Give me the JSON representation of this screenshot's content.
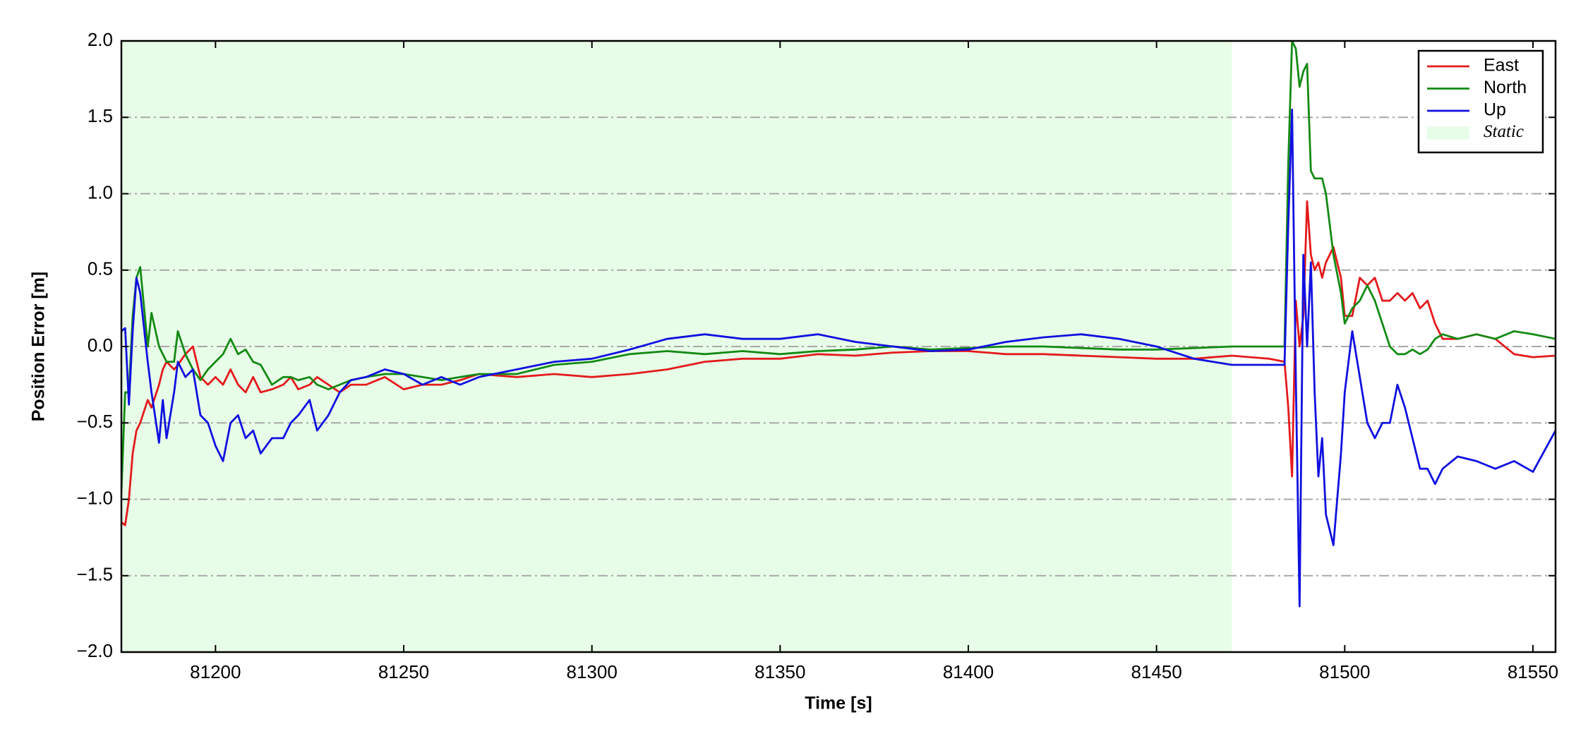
{
  "chart_data": {
    "type": "line",
    "xlabel": "Time [s]",
    "ylabel": "Position Error [m]",
    "x": [
      81175,
      81176,
      81177,
      81178,
      81179,
      81180,
      81182,
      81183,
      81185,
      81186,
      81187,
      81189,
      81190,
      81192,
      81194,
      81196,
      81198,
      81200,
      81202,
      81204,
      81206,
      81208,
      81210,
      81212,
      81215,
      81218,
      81220,
      81222,
      81225,
      81227,
      81230,
      81233,
      81236,
      81240,
      81245,
      81250,
      81255,
      81260,
      81265,
      81270,
      81280,
      81290,
      81300,
      81310,
      81320,
      81330,
      81340,
      81350,
      81360,
      81370,
      81380,
      81390,
      81400,
      81410,
      81420,
      81430,
      81440,
      81450,
      81460,
      81470,
      81480,
      81484,
      81485,
      81486,
      81487,
      81488,
      81489,
      81490,
      81491,
      81492,
      81493,
      81494,
      81495,
      81497,
      81499,
      81500,
      81502,
      81504,
      81506,
      81508,
      81510,
      81512,
      81514,
      81516,
      81518,
      81520,
      81522,
      81524,
      81526,
      81530,
      81535,
      81540,
      81545,
      81550,
      81556
    ],
    "series": [
      {
        "name": "East",
        "color": "#e31a1c",
        "values": [
          -1.15,
          -1.17,
          -1.0,
          -0.7,
          -0.55,
          -0.5,
          -0.35,
          -0.4,
          -0.25,
          -0.15,
          -0.1,
          -0.15,
          -0.12,
          -0.05,
          0.0,
          -0.2,
          -0.25,
          -0.2,
          -0.25,
          -0.15,
          -0.25,
          -0.3,
          -0.2,
          -0.3,
          -0.28,
          -0.25,
          -0.2,
          -0.28,
          -0.25,
          -0.2,
          -0.25,
          -0.3,
          -0.25,
          -0.25,
          -0.2,
          -0.28,
          -0.25,
          -0.25,
          -0.22,
          -0.18,
          -0.2,
          -0.18,
          -0.2,
          -0.18,
          -0.15,
          -0.1,
          -0.08,
          -0.08,
          -0.05,
          -0.06,
          -0.04,
          -0.03,
          -0.03,
          -0.05,
          -0.05,
          -0.06,
          -0.07,
          -0.08,
          -0.08,
          -0.06,
          -0.08,
          -0.1,
          -0.4,
          -0.85,
          0.3,
          0.0,
          0.2,
          0.95,
          0.6,
          0.5,
          0.55,
          0.45,
          0.55,
          0.65,
          0.45,
          0.2,
          0.2,
          0.45,
          0.4,
          0.45,
          0.3,
          0.3,
          0.35,
          0.3,
          0.35,
          0.25,
          0.3,
          0.15,
          0.05,
          0.05,
          0.08,
          0.05,
          -0.05,
          -0.07,
          -0.06
        ]
      },
      {
        "name": "North",
        "color": "#138a13",
        "values": [
          -0.95,
          -0.3,
          -0.3,
          0.2,
          0.45,
          0.52,
          0.0,
          0.22,
          0.0,
          -0.05,
          -0.1,
          -0.1,
          0.1,
          -0.05,
          -0.15,
          -0.22,
          -0.15,
          -0.1,
          -0.05,
          0.05,
          -0.05,
          -0.02,
          -0.1,
          -0.12,
          -0.25,
          -0.2,
          -0.2,
          -0.22,
          -0.2,
          -0.25,
          -0.28,
          -0.25,
          -0.22,
          -0.2,
          -0.18,
          -0.18,
          -0.2,
          -0.22,
          -0.2,
          -0.18,
          -0.18,
          -0.12,
          -0.1,
          -0.05,
          -0.03,
          -0.05,
          -0.03,
          -0.05,
          -0.03,
          -0.02,
          0.0,
          -0.02,
          -0.01,
          0.0,
          0.0,
          -0.01,
          -0.02,
          -0.02,
          -0.01,
          0.0,
          0.0,
          0.0,
          1.2,
          2.0,
          1.95,
          1.7,
          1.8,
          1.85,
          1.15,
          1.1,
          1.1,
          1.1,
          1.0,
          0.6,
          0.35,
          0.15,
          0.25,
          0.3,
          0.4,
          0.3,
          0.15,
          0.0,
          -0.05,
          -0.05,
          -0.02,
          -0.05,
          -0.02,
          0.05,
          0.08,
          0.05,
          0.08,
          0.05,
          0.1,
          0.08,
          0.05
        ]
      },
      {
        "name": "Up",
        "color": "#1010e0",
        "values": [
          0.1,
          0.12,
          -0.38,
          0.1,
          0.45,
          0.35,
          -0.1,
          -0.3,
          -0.63,
          -0.35,
          -0.6,
          -0.3,
          -0.1,
          -0.2,
          -0.15,
          -0.45,
          -0.5,
          -0.65,
          -0.75,
          -0.5,
          -0.45,
          -0.6,
          -0.55,
          -0.7,
          -0.6,
          -0.6,
          -0.5,
          -0.45,
          -0.35,
          -0.55,
          -0.45,
          -0.3,
          -0.22,
          -0.2,
          -0.15,
          -0.18,
          -0.25,
          -0.2,
          -0.25,
          -0.2,
          -0.15,
          -0.1,
          -0.08,
          -0.02,
          0.05,
          0.08,
          0.05,
          0.05,
          0.08,
          0.03,
          0.0,
          -0.03,
          -0.02,
          0.03,
          0.06,
          0.08,
          0.05,
          0.0,
          -0.08,
          -0.12,
          -0.12,
          -0.12,
          0.8,
          1.55,
          -0.2,
          -1.7,
          0.6,
          0.0,
          0.55,
          -0.3,
          -0.85,
          -0.6,
          -1.1,
          -1.3,
          -0.7,
          -0.3,
          0.1,
          -0.2,
          -0.5,
          -0.6,
          -0.5,
          -0.5,
          -0.25,
          -0.4,
          -0.6,
          -0.8,
          -0.8,
          -0.9,
          -0.8,
          -0.72,
          -0.75,
          -0.8,
          -0.75,
          -0.82,
          -0.55
        ]
      }
    ],
    "shaded_region": {
      "name": "Static",
      "color": "#e8fde8",
      "x": [
        81175,
        81470
      ]
    },
    "xlim": [
      81175,
      81556
    ],
    "xticks": [
      81200,
      81250,
      81300,
      81350,
      81400,
      81450,
      81500,
      81550
    ],
    "ylim": [
      -2,
      2
    ],
    "yticks": [
      {
        "value": -2,
        "label": "−2.0"
      },
      {
        "value": -1.5,
        "label": "−1.5"
      },
      {
        "value": -1,
        "label": "−1.0"
      },
      {
        "value": -0.5,
        "label": "−0.5"
      },
      {
        "value": 0,
        "label": "0.0"
      },
      {
        "value": 0.5,
        "label": "0.5"
      },
      {
        "value": 1,
        "label": "1.0"
      },
      {
        "value": 1.5,
        "label": "1.5"
      },
      {
        "value": 2,
        "label": "2.0"
      }
    ],
    "grid": true,
    "legend": "upper right"
  }
}
